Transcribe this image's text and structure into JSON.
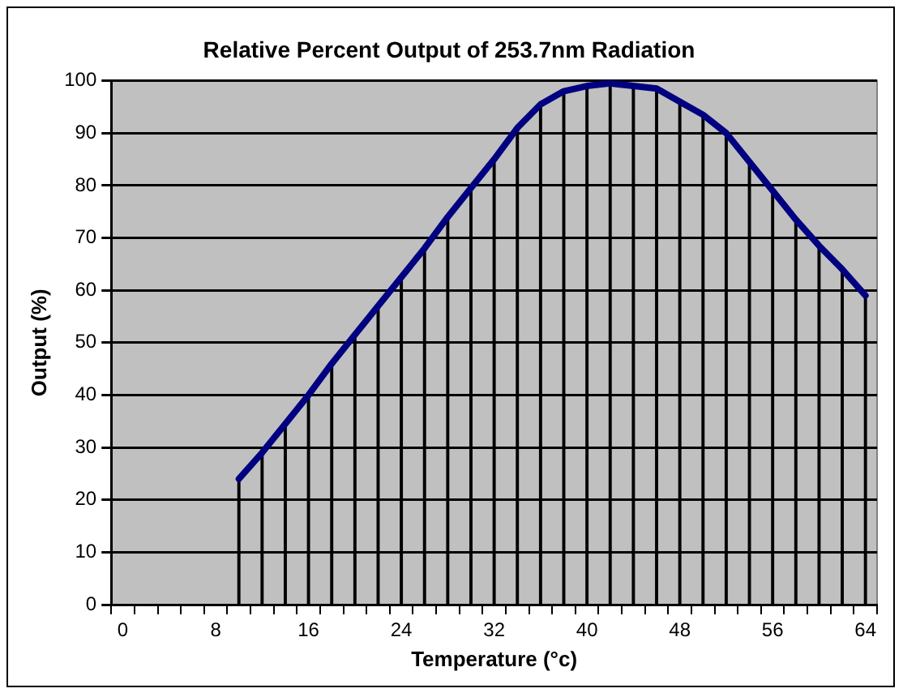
{
  "chart_data": {
    "type": "line",
    "title": "Relative Percent Output of 253.7nm Radiation",
    "xlabel": "Temperature (°c)",
    "ylabel": "Output (%)",
    "categories": [
      "0",
      null,
      null,
      null,
      "8",
      null,
      null,
      null,
      "16",
      null,
      null,
      null,
      "24",
      null,
      null,
      null,
      "32",
      null,
      null,
      null,
      "40",
      null,
      null,
      null,
      "48",
      null,
      null,
      null,
      "56",
      null,
      null,
      null,
      "64"
    ],
    "series": [
      {
        "color": "#000080",
        "values": [
          null,
          null,
          null,
          null,
          null,
          24,
          29,
          34.5,
          40,
          46,
          51.5,
          57,
          62.5,
          68,
          74,
          79.5,
          85,
          91,
          95.5,
          98,
          99,
          99.5,
          99,
          98.5,
          96,
          93.5,
          90,
          84.5,
          79,
          73.5,
          68.5,
          64,
          59
        ]
      },
      {
        "type": "bar",
        "color": "#000000",
        "values": [
          null,
          null,
          null,
          null,
          null,
          24,
          29,
          34.5,
          40,
          46,
          51.5,
          57,
          62.5,
          68,
          74,
          79.5,
          85,
          91,
          95.5,
          98,
          99,
          99.5,
          99,
          98.5,
          96,
          93.5,
          90,
          84.5,
          79,
          73.5,
          68.5,
          64,
          59
        ]
      }
    ],
    "ylim": [
      0,
      100
    ],
    "yticks": [
      0,
      10,
      20,
      30,
      40,
      50,
      60,
      70,
      80,
      90,
      100
    ],
    "grid": "y",
    "legend": false,
    "marker": "none",
    "line_style": "solid"
  }
}
